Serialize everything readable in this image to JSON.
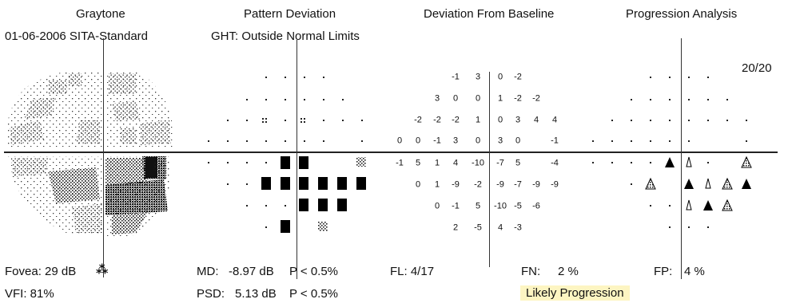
{
  "headers": {
    "graytone": "Graytone",
    "pattern_deviation": "Pattern Deviation",
    "deviation_from_baseline": "Deviation From Baseline",
    "progression_analysis": "Progression Analysis"
  },
  "exam_date_strategy": "01-06-2006  SITA-Standard",
  "ght": "GHT: Outside Normal Limits",
  "count": "20/20",
  "baseline_values": [
    {
      "row": 0,
      "col": 2,
      "v": "-1"
    },
    {
      "row": 0,
      "col": 3,
      "v": "3"
    },
    {
      "row": 0,
      "col": 4,
      "v": "0"
    },
    {
      "row": 0,
      "col": 5,
      "v": "-2"
    },
    {
      "row": 1,
      "col": 1,
      "v": "3"
    },
    {
      "row": 1,
      "col": 2,
      "v": "0"
    },
    {
      "row": 1,
      "col": 3,
      "v": "0"
    },
    {
      "row": 1,
      "col": 4,
      "v": "1"
    },
    {
      "row": 1,
      "col": 5,
      "v": "-2"
    },
    {
      "row": 1,
      "col": 6,
      "v": "-2"
    },
    {
      "row": 2,
      "col": 0,
      "v": "-2"
    },
    {
      "row": 2,
      "col": 1,
      "v": "-2"
    },
    {
      "row": 2,
      "col": 2,
      "v": "-2"
    },
    {
      "row": 2,
      "col": 3,
      "v": "1"
    },
    {
      "row": 2,
      "col": 4,
      "v": "0"
    },
    {
      "row": 2,
      "col": 5,
      "v": "3"
    },
    {
      "row": 2,
      "col": 6,
      "v": "4"
    },
    {
      "row": 2,
      "col": 7,
      "v": "4"
    },
    {
      "row": 3,
      "col": -1,
      "v": "0"
    },
    {
      "row": 3,
      "col": 0,
      "v": "0"
    },
    {
      "row": 3,
      "col": 1,
      "v": "-1"
    },
    {
      "row": 3,
      "col": 2,
      "v": "3"
    },
    {
      "row": 3,
      "col": 3,
      "v": "0"
    },
    {
      "row": 3,
      "col": 4,
      "v": "3"
    },
    {
      "row": 3,
      "col": 5,
      "v": "0"
    },
    {
      "row": 3,
      "col": 7,
      "v": "-1"
    },
    {
      "row": 4,
      "col": -1,
      "v": "-1"
    },
    {
      "row": 4,
      "col": 0,
      "v": "5"
    },
    {
      "row": 4,
      "col": 1,
      "v": "1"
    },
    {
      "row": 4,
      "col": 2,
      "v": "4"
    },
    {
      "row": 4,
      "col": 3,
      "v": "-10"
    },
    {
      "row": 4,
      "col": 4,
      "v": "-7"
    },
    {
      "row": 4,
      "col": 5,
      "v": "5"
    },
    {
      "row": 4,
      "col": 7,
      "v": "-4"
    },
    {
      "row": 5,
      "col": 0,
      "v": "0"
    },
    {
      "row": 5,
      "col": 1,
      "v": "1"
    },
    {
      "row": 5,
      "col": 2,
      "v": "-9"
    },
    {
      "row": 5,
      "col": 3,
      "v": "-2"
    },
    {
      "row": 5,
      "col": 4,
      "v": "-9"
    },
    {
      "row": 5,
      "col": 5,
      "v": "-7"
    },
    {
      "row": 5,
      "col": 6,
      "v": "-9"
    },
    {
      "row": 5,
      "col": 7,
      "v": "-9"
    },
    {
      "row": 6,
      "col": 1,
      "v": "0"
    },
    {
      "row": 6,
      "col": 2,
      "v": "-1"
    },
    {
      "row": 6,
      "col": 3,
      "v": "5"
    },
    {
      "row": 6,
      "col": 4,
      "v": "-10"
    },
    {
      "row": 6,
      "col": 5,
      "v": "-5"
    },
    {
      "row": 6,
      "col": 6,
      "v": "-6"
    },
    {
      "row": 7,
      "col": 2,
      "v": "2"
    },
    {
      "row": 7,
      "col": 3,
      "v": "-5"
    },
    {
      "row": 7,
      "col": 4,
      "v": "4"
    },
    {
      "row": 7,
      "col": 5,
      "v": "-3"
    }
  ],
  "footer": {
    "fovea": "Fovea: 29 dB",
    "vfi": "VFI: 81%",
    "md_label": "MD:",
    "md_value": "-8.97 dB",
    "md_p": "P < 0.5%",
    "psd_label": "PSD:",
    "psd_value": "5.13 dB",
    "psd_p": "P < 0.5%",
    "fl": "FL: 4/17",
    "fn_label": "FN:",
    "fn_value": "2 %",
    "fp_label": "FP:",
    "fp_value": "4 %",
    "progression_result": "Likely Progression"
  },
  "colors": {
    "highlight": "#fdf5c2",
    "ink": "#111111"
  }
}
